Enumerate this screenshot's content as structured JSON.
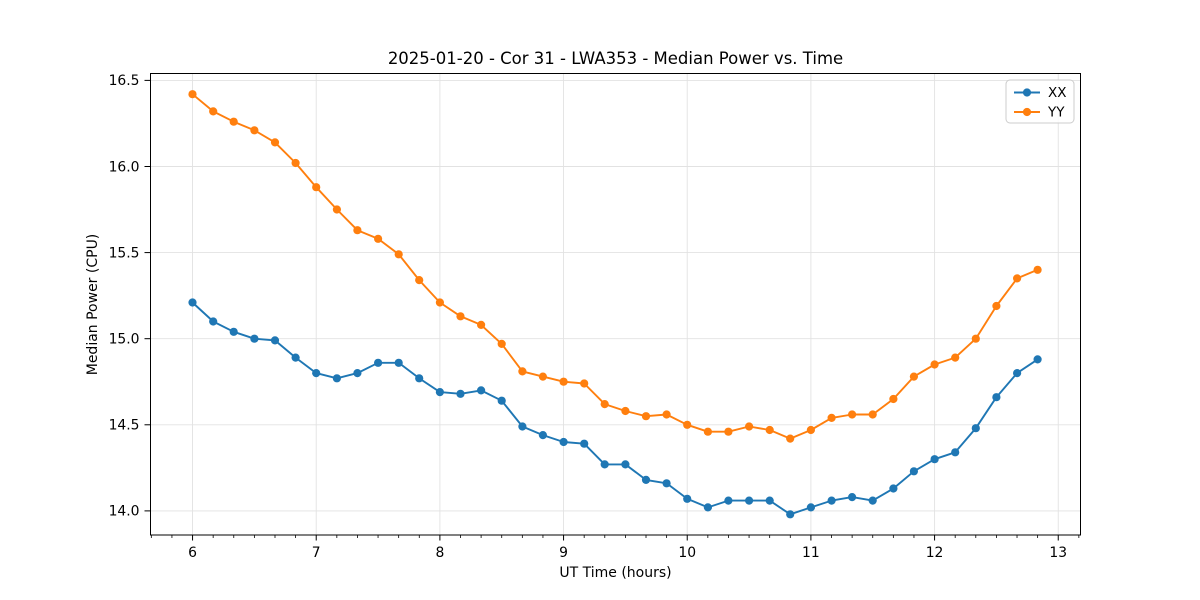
{
  "chart_data": {
    "type": "line",
    "title": "2025-01-20 - Cor 31 - LWA353 - Median Power vs. Time",
    "xlabel": "UT Time (hours)",
    "ylabel": "Median Power (CPU)",
    "xlim": [
      5.66,
      13.18
    ],
    "ylim": [
      13.86,
      16.54
    ],
    "xticks": [
      6,
      7,
      8,
      9,
      10,
      11,
      12,
      13
    ],
    "xtick_labels": [
      "6",
      "7",
      "8",
      "9",
      "10",
      "11",
      "12",
      "13"
    ],
    "x_minor_step": 0.166667,
    "yticks": [
      14.0,
      14.5,
      15.0,
      15.5,
      16.0,
      16.5
    ],
    "ytick_labels": [
      "14.0",
      "14.5",
      "15.0",
      "15.5",
      "16.0",
      "16.5"
    ],
    "grid": true,
    "grid_color": "#e2e2e2",
    "spine_color": "#000000",
    "background_color": "#ffffff",
    "legend_position": "upper right",
    "x": [
      6.0,
      6.167,
      6.333,
      6.5,
      6.667,
      6.833,
      7.0,
      7.167,
      7.333,
      7.5,
      7.667,
      7.833,
      8.0,
      8.167,
      8.333,
      8.5,
      8.667,
      8.833,
      9.0,
      9.167,
      9.333,
      9.5,
      9.667,
      9.833,
      10.0,
      10.167,
      10.333,
      10.5,
      10.667,
      10.833,
      11.0,
      11.167,
      11.333,
      11.5,
      11.667,
      11.833,
      12.0,
      12.167,
      12.333,
      12.5,
      12.667,
      12.833
    ],
    "series": [
      {
        "name": "XX",
        "color": "#1f77b4",
        "values": [
          15.21,
          15.1,
          15.04,
          15.0,
          14.99,
          14.89,
          14.8,
          14.77,
          14.8,
          14.86,
          14.86,
          14.77,
          14.69,
          14.68,
          14.7,
          14.64,
          14.49,
          14.44,
          14.4,
          14.39,
          14.27,
          14.27,
          14.18,
          14.16,
          14.07,
          14.02,
          14.06,
          14.06,
          14.06,
          13.98,
          14.02,
          14.06,
          14.08,
          14.06,
          14.13,
          14.23,
          14.3,
          14.34,
          14.48,
          14.66,
          14.8,
          14.88
        ]
      },
      {
        "name": "YY",
        "color": "#ff7f0e",
        "values": [
          16.42,
          16.32,
          16.26,
          16.21,
          16.14,
          16.02,
          15.88,
          15.75,
          15.63,
          15.58,
          15.49,
          15.34,
          15.21,
          15.13,
          15.08,
          14.97,
          14.81,
          14.78,
          14.75,
          14.74,
          14.62,
          14.58,
          14.55,
          14.56,
          14.5,
          14.46,
          14.46,
          14.49,
          14.47,
          14.42,
          14.47,
          14.54,
          14.56,
          14.56,
          14.65,
          14.78,
          14.85,
          14.89,
          15.0,
          15.19,
          15.35,
          15.4
        ]
      }
    ]
  }
}
